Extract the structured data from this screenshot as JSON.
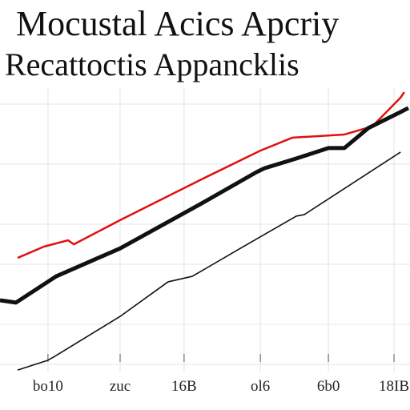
{
  "chart_data": {
    "type": "line",
    "title": "Mocustal Acics Apcriy",
    "subtitle": "Recattoctis Appancklis",
    "xlim": [
      0,
      100
    ],
    "ylim": [
      0,
      100
    ],
    "xticks": [
      {
        "value": 11.7,
        "label": "bo10"
      },
      {
        "value": 29.3,
        "label": "zuc"
      },
      {
        "value": 44.9,
        "label": "16B"
      },
      {
        "value": 63.5,
        "label": "ol6"
      },
      {
        "value": 80.1,
        "label": "6b0"
      },
      {
        "value": 96.1,
        "label": "18IB"
      }
    ],
    "grid": true,
    "series": [
      {
        "color": "#e01010",
        "width": 2.5,
        "x": [
          4.3,
          10.7,
          16.6,
          18.0,
          29.3,
          48.8,
          63.5,
          71.3,
          84.0,
          90.8,
          97.7,
          98.6
        ],
        "values": [
          41.1,
          45.0,
          47.2,
          45.8,
          54.2,
          68.1,
          78.3,
          82.8,
          83.9,
          86.7,
          96.7,
          98.6
        ]
      },
      {
        "color": "#111111",
        "width": 5,
        "x": [
          0,
          3.9,
          13.7,
          29.3,
          48.8,
          62.5,
          64.5,
          72.3,
          80.1,
          84.0,
          89.8,
          97.7,
          99.6
        ],
        "values": [
          26.4,
          25.6,
          34.7,
          44.4,
          59.7,
          70.8,
          72.2,
          75.6,
          79.2,
          79.2,
          86.1,
          91.7,
          93.1
        ]
      },
      {
        "color": "#111111",
        "width": 1.6,
        "x": [
          4.3,
          11.7,
          13.3,
          29.3,
          41.0,
          46.9,
          58.6,
          72.3,
          74.2,
          97.7
        ],
        "values": [
          2.2,
          5.6,
          6.9,
          20.8,
          32.8,
          34.7,
          44.4,
          55.6,
          56.1,
          77.8
        ]
      }
    ]
  }
}
